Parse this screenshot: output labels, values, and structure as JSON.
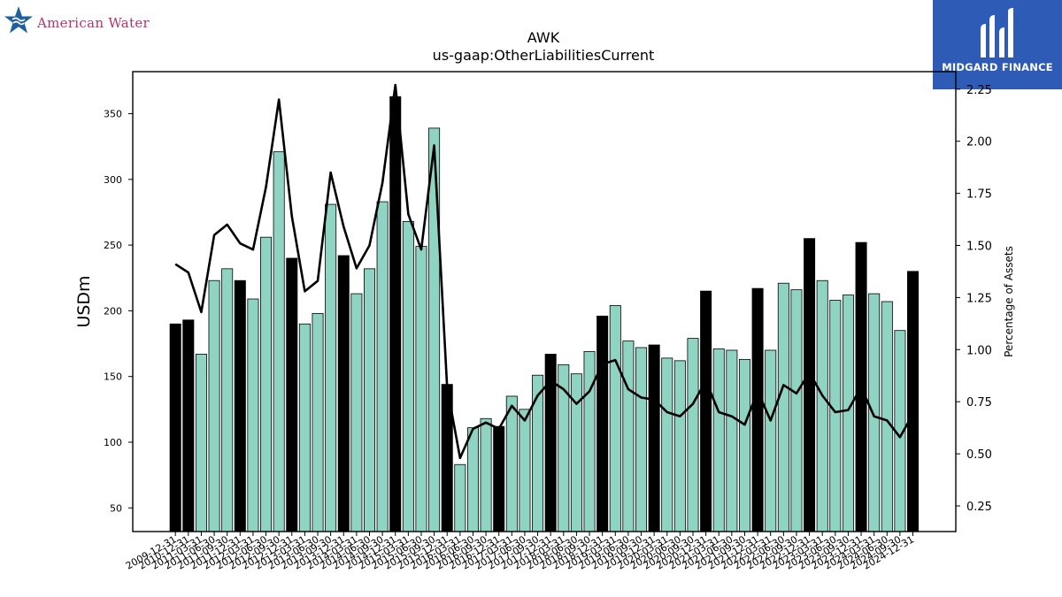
{
  "branding": {
    "left_logo_text": "American Water",
    "right_logo_text": "MIDGARD FINANCE"
  },
  "colors": {
    "bar_normal": "#8fd3c2",
    "bar_highlight": "#000000",
    "line": "#000000",
    "right_logo_bg": "#2e5bb5",
    "left_logo_text": "#b5346b"
  },
  "chart_data": {
    "type": "bar",
    "title": "AWK",
    "subtitle": "us-gaap:OtherLiabilitiesCurrent",
    "ylabel": "USDm",
    "y2label": "Percentage of Assets",
    "ylim": [
      32,
      382
    ],
    "y2lim": [
      0.127,
      2.334
    ],
    "yticks": [
      50,
      100,
      150,
      200,
      250,
      300,
      350
    ],
    "y2ticks": [
      0.25,
      0.5,
      0.75,
      1.0,
      1.25,
      1.5,
      1.75,
      2.0,
      2.25
    ],
    "y2tick_labels": [
      "0.25",
      "0.50",
      "0.75",
      "1.00",
      "1.25",
      "1.50",
      "1.75",
      "2.00",
      "2.25"
    ],
    "categories": [
      "2009-12-31",
      "2010-12-31",
      "2011-03-31",
      "2011-06-30",
      "2011-09-30",
      "2011-12-31",
      "2012-03-31",
      "2012-06-30",
      "2012-09-30",
      "2012-12-31",
      "2013-03-31",
      "2013-06-30",
      "2013-09-30",
      "2013-12-31",
      "2014-03-31",
      "2014-06-30",
      "2014-09-30",
      "2014-12-31",
      "2015-03-31",
      "2015-06-30",
      "2015-09-30",
      "2015-12-31",
      "2016-03-31",
      "2016-06-30",
      "2016-09-30",
      "2016-12-31",
      "2017-03-31",
      "2017-06-30",
      "2017-09-30",
      "2017-12-31",
      "2018-03-31",
      "2018-06-30",
      "2018-09-30",
      "2018-12-31",
      "2019-03-31",
      "2019-06-30",
      "2019-09-30",
      "2019-12-31",
      "2020-03-31",
      "2020-06-30",
      "2020-09-30",
      "2020-12-31",
      "2021-03-31",
      "2021-06-30",
      "2021-09-30",
      "2021-12-31",
      "2022-03-31",
      "2022-06-30",
      "2022-09-30",
      "2022-12-31",
      "2023-03-31",
      "2023-06-30",
      "2023-09-30",
      "2023-12-31",
      "2024-03-31",
      "2024-06-30",
      "2024-09-30",
      "2024-12-31"
    ],
    "series": [
      {
        "type": "bar",
        "values": [
          190,
          193,
          167,
          223,
          232,
          223,
          209,
          256,
          321,
          240,
          190,
          198,
          281,
          242,
          213,
          232,
          283,
          363,
          268,
          249,
          339,
          144,
          83,
          111,
          118,
          112,
          135,
          125,
          151,
          167,
          159,
          152,
          169,
          196,
          204,
          177,
          172,
          174,
          164,
          162,
          179,
          215,
          171,
          170,
          163,
          217,
          170,
          221,
          216,
          255,
          223,
          208,
          212,
          252,
          213,
          207,
          185,
          230
        ],
        "highlight": [
          true,
          true,
          false,
          false,
          false,
          true,
          false,
          false,
          false,
          true,
          false,
          false,
          false,
          true,
          false,
          false,
          false,
          true,
          false,
          false,
          false,
          true,
          false,
          false,
          false,
          true,
          false,
          false,
          false,
          true,
          false,
          false,
          false,
          true,
          false,
          false,
          false,
          true,
          false,
          false,
          false,
          true,
          false,
          false,
          false,
          true,
          false,
          false,
          false,
          true,
          false,
          false,
          false,
          true,
          false,
          false,
          false,
          true
        ]
      },
      {
        "type": "line",
        "axis": "right",
        "values": [
          1.41,
          1.37,
          1.18,
          1.55,
          1.6,
          1.51,
          1.48,
          1.78,
          2.2,
          1.64,
          1.28,
          1.33,
          1.85,
          1.59,
          1.39,
          1.5,
          1.8,
          2.27,
          1.65,
          1.48,
          1.98,
          0.82,
          0.48,
          0.62,
          0.65,
          0.62,
          0.73,
          0.66,
          0.78,
          0.85,
          0.81,
          0.74,
          0.8,
          0.93,
          0.95,
          0.81,
          0.77,
          0.76,
          0.7,
          0.68,
          0.74,
          0.85,
          0.7,
          0.68,
          0.64,
          0.8,
          0.66,
          0.83,
          0.79,
          0.89,
          0.78,
          0.7,
          0.71,
          0.82,
          0.68,
          0.66,
          0.58,
          0.69
        ]
      }
    ]
  }
}
